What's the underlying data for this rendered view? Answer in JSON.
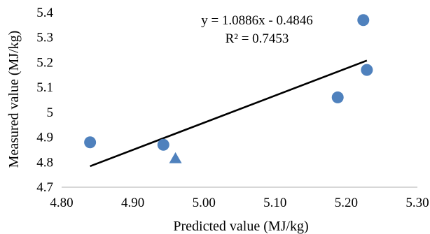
{
  "chart_data": {
    "type": "scatter",
    "xlabel": "Predicted value (MJ/kg)",
    "ylabel": "Measured value (MJ/kg)",
    "xlim": [
      4.8,
      5.3
    ],
    "ylim": [
      4.7,
      5.4
    ],
    "x_ticks": [
      "4.80",
      "4.90",
      "5.00",
      "5.10",
      "5.20",
      "5.30"
    ],
    "y_ticks": [
      "4.7",
      "4.8",
      "4.9",
      "5",
      "5.1",
      "5.2",
      "5.3",
      "5.4"
    ],
    "grid": false,
    "series": [
      {
        "marker": "circle",
        "color": "#4f81bd",
        "points": [
          {
            "x": 4.84,
            "y": 4.88
          },
          {
            "x": 4.943,
            "y": 4.87
          },
          {
            "x": 5.188,
            "y": 5.06
          },
          {
            "x": 5.224,
            "y": 5.37
          },
          {
            "x": 5.229,
            "y": 5.17
          }
        ]
      },
      {
        "marker": "triangle",
        "color": "#4f81bd",
        "points": [
          {
            "x": 4.96,
            "y": 4.815
          }
        ]
      }
    ],
    "trendline": {
      "type": "linear",
      "slope": 1.0886,
      "intercept": -0.4846,
      "x_range": [
        4.84,
        5.229
      ],
      "color": "#000000"
    },
    "equation_label": "y = 1.0886x - 0.4846",
    "r2_label": "R² = 0.7453"
  }
}
